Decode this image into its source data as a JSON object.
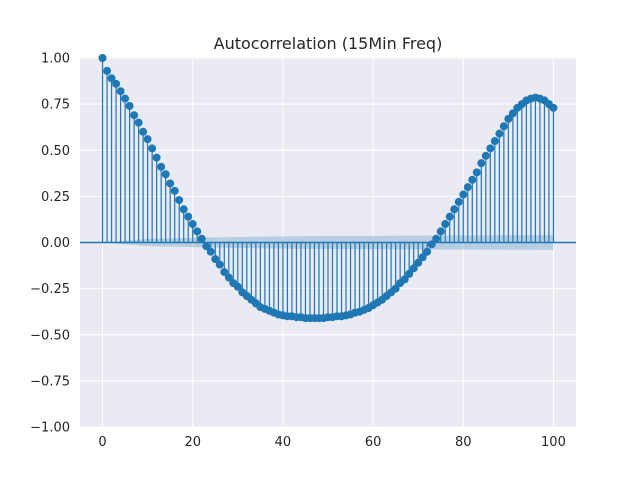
{
  "chart_data": {
    "type": "stem",
    "title": "Autocorrelation (15Min Freq)",
    "xlabel": "",
    "ylabel": "",
    "xlim": [
      -5,
      105
    ],
    "ylim": [
      -1.0,
      1.0
    ],
    "xticks": [
      0,
      20,
      40,
      60,
      80,
      100
    ],
    "xtick_labels": [
      "0",
      "20",
      "40",
      "60",
      "80",
      "100"
    ],
    "yticks": [
      -1.0,
      -0.75,
      -0.5,
      -0.25,
      0.0,
      0.25,
      0.5,
      0.75,
      1.0
    ],
    "ytick_labels": [
      "−1.00",
      "−0.75",
      "−0.50",
      "−0.25",
      "0.00",
      "0.25",
      "0.50",
      "0.75",
      "1.00"
    ],
    "grid": true,
    "lags": [
      0,
      1,
      2,
      3,
      4,
      5,
      6,
      7,
      8,
      9,
      10,
      11,
      12,
      13,
      14,
      15,
      16,
      17,
      18,
      19,
      20,
      21,
      22,
      23,
      24,
      25,
      26,
      27,
      28,
      29,
      30,
      31,
      32,
      33,
      34,
      35,
      36,
      37,
      38,
      39,
      40,
      41,
      42,
      43,
      44,
      45,
      46,
      47,
      48,
      49,
      50,
      51,
      52,
      53,
      54,
      55,
      56,
      57,
      58,
      59,
      60,
      61,
      62,
      63,
      64,
      65,
      66,
      67,
      68,
      69,
      70,
      71,
      72,
      73,
      74,
      75,
      76,
      77,
      78,
      79,
      80,
      81,
      82,
      83,
      84,
      85,
      86,
      87,
      88,
      89,
      90,
      91,
      92,
      93,
      94,
      95,
      96,
      97,
      98,
      99,
      100
    ],
    "acf": [
      1.0,
      0.93,
      0.89,
      0.86,
      0.82,
      0.78,
      0.74,
      0.69,
      0.65,
      0.6,
      0.56,
      0.51,
      0.46,
      0.41,
      0.37,
      0.32,
      0.28,
      0.23,
      0.18,
      0.14,
      0.1,
      0.06,
      0.02,
      -0.02,
      -0.05,
      -0.09,
      -0.12,
      -0.16,
      -0.19,
      -0.22,
      -0.24,
      -0.27,
      -0.29,
      -0.31,
      -0.33,
      -0.35,
      -0.36,
      -0.37,
      -0.38,
      -0.39,
      -0.395,
      -0.4,
      -0.4,
      -0.405,
      -0.405,
      -0.41,
      -0.41,
      -0.41,
      -0.41,
      -0.41,
      -0.405,
      -0.405,
      -0.4,
      -0.4,
      -0.395,
      -0.39,
      -0.38,
      -0.375,
      -0.365,
      -0.355,
      -0.34,
      -0.325,
      -0.31,
      -0.29,
      -0.27,
      -0.25,
      -0.22,
      -0.2,
      -0.17,
      -0.14,
      -0.11,
      -0.08,
      -0.05,
      -0.01,
      0.02,
      0.06,
      0.1,
      0.14,
      0.18,
      0.22,
      0.26,
      0.3,
      0.34,
      0.38,
      0.43,
      0.47,
      0.51,
      0.55,
      0.59,
      0.63,
      0.67,
      0.7,
      0.73,
      0.75,
      0.77,
      0.78,
      0.785,
      0.78,
      0.77,
      0.75,
      0.73
    ],
    "confidence_band": {
      "lags": [
        0,
        10,
        20,
        30,
        40,
        50,
        60,
        70,
        80,
        90,
        100
      ],
      "half_width": [
        0.0,
        0.02,
        0.025,
        0.03,
        0.033,
        0.035,
        0.036,
        0.037,
        0.038,
        0.039,
        0.04
      ]
    },
    "colors": {
      "stem": "#1f77b4",
      "band": "#1f77b4",
      "axes_bg": "#eaeaf2",
      "grid": "#ffffff",
      "text": "#262626"
    }
  }
}
